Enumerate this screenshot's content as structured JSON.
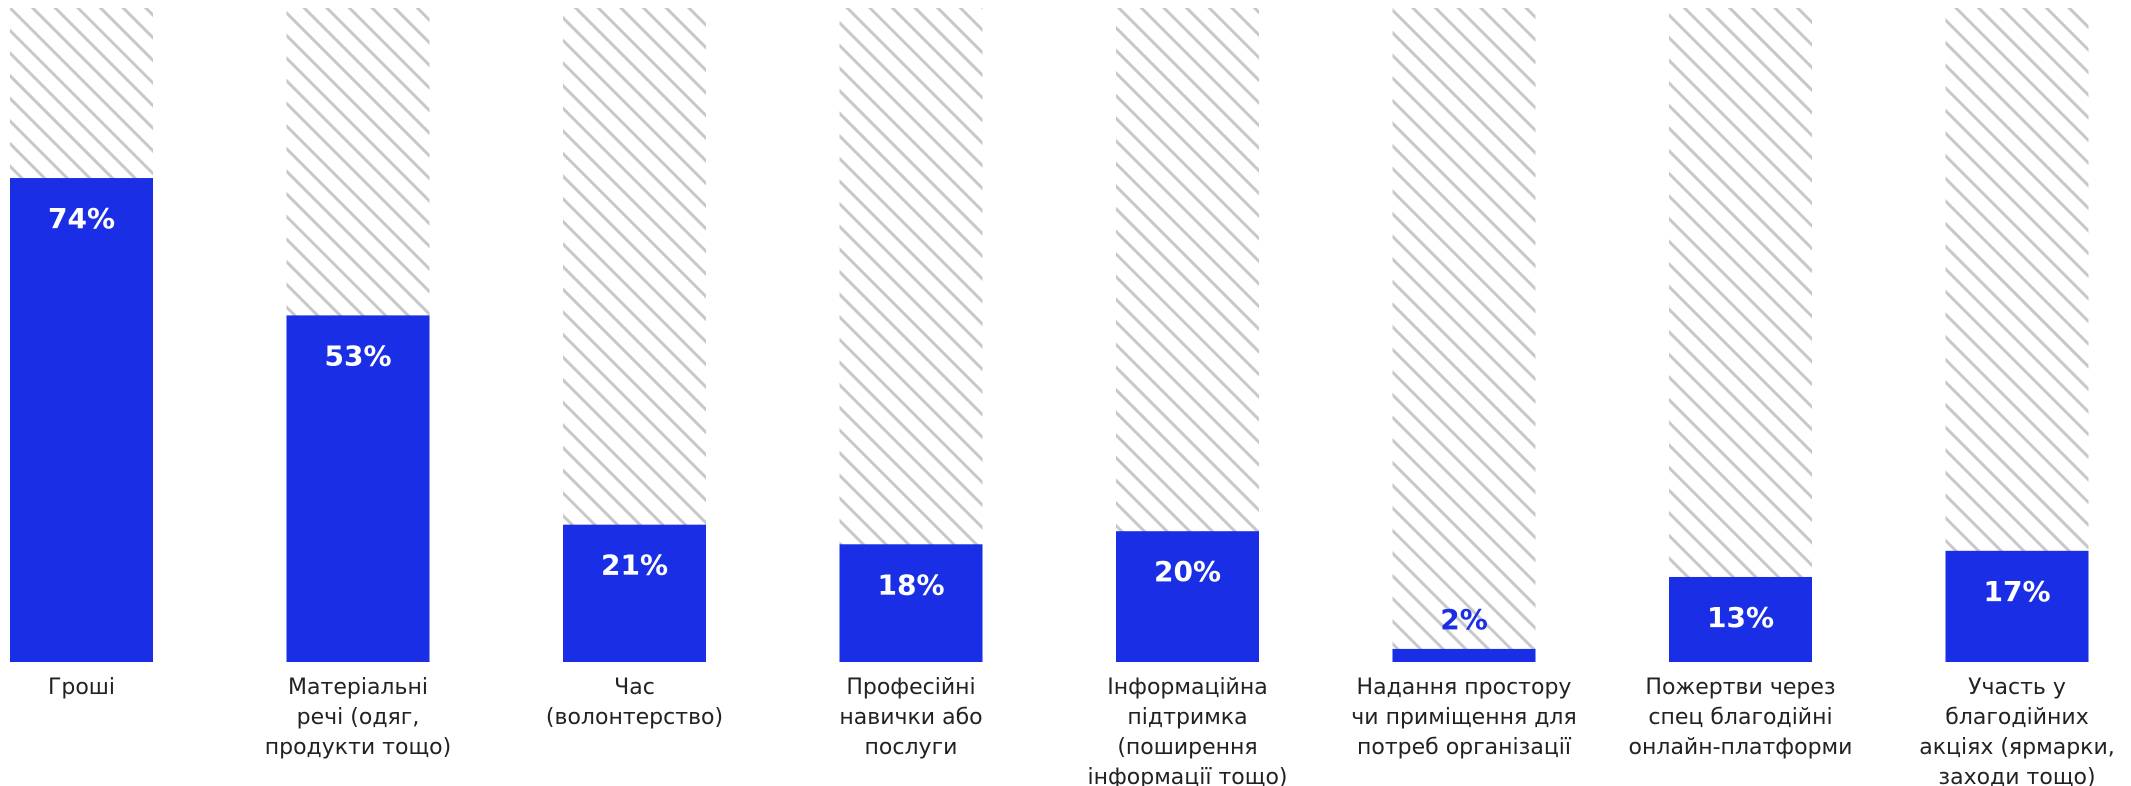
{
  "chart_data": {
    "type": "bar",
    "ylim": [
      0,
      100
    ],
    "grid": false,
    "categories": [
      [
        "Гроші"
      ],
      [
        "Матеріальні",
        "речі (одяг,",
        "продукти тощо)"
      ],
      [
        "Час",
        "(волонтерство)"
      ],
      [
        "Професійні",
        "навички або",
        "послуги"
      ],
      [
        "Інформаційна",
        "підтримка",
        "(поширення",
        "інформації тощо)"
      ],
      [
        "Надання простору",
        "чи приміщення для",
        "потреб організації"
      ],
      [
        "Пожертви через",
        "спец благодійні",
        "онлайн-платформи"
      ],
      [
        "Участь у",
        "благодійних",
        "акціях (ярмарки,",
        "заходи тощо)"
      ]
    ],
    "values": [
      74,
      53,
      21,
      18,
      20,
      2,
      13,
      17
    ],
    "value_labels": [
      "74%",
      "53%",
      "21%",
      "18%",
      "20%",
      "2%",
      "13%",
      "17%"
    ],
    "colors": {
      "bar": "#1a2ee6",
      "track_hatch": "#c8c8c8",
      "label_inside": "#ffffff",
      "label_outside": "#1a2ee6"
    }
  }
}
